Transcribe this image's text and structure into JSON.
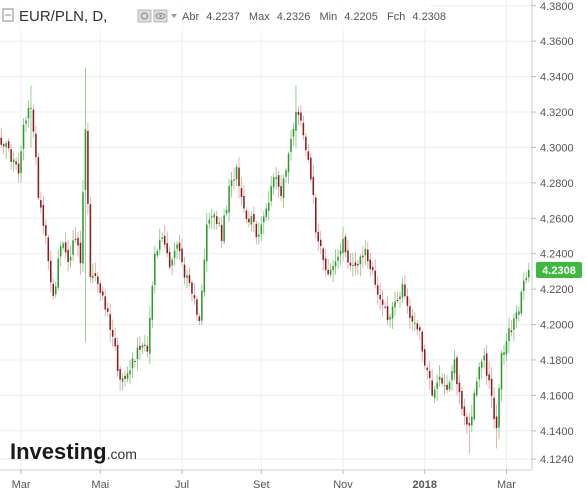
{
  "header": {
    "symbol": "EUR/PLN, D,",
    "open_label": "Abr",
    "open_value": "4.2237",
    "high_label": "Max",
    "high_value": "4.2326",
    "low_label": "Min",
    "low_value": "4.2205",
    "close_label": "Fch",
    "close_value": "4.2308"
  },
  "logo": {
    "brand": "Investing",
    "suffix": ".com"
  },
  "colors": {
    "up": "#2a9a2a",
    "down": "#8b1a1a",
    "wick_up": "#7cc47c",
    "wick_down": "#d9a0a0",
    "last_price_bg": "#3fb83f",
    "grid": "#eeeeee"
  },
  "chart_data": {
    "type": "candlestick",
    "y_ticks": [
      "4.1240",
      "4.1400",
      "4.1600",
      "4.1800",
      "4.2000",
      "4.2200",
      "4.2400",
      "4.2600",
      "4.2800",
      "4.3000",
      "4.3200",
      "4.3400",
      "4.3600",
      "4.3800"
    ],
    "ylim": [
      4.119,
      4.381
    ],
    "x_ticks": [
      {
        "label": "Mar",
        "index": 8
      },
      {
        "label": "Mai",
        "index": 40
      },
      {
        "label": "Jul",
        "index": 73
      },
      {
        "label": "Set",
        "index": 105
      },
      {
        "label": "Nov",
        "index": 138
      },
      {
        "label": "2018",
        "index": 171,
        "bold": true
      },
      {
        "label": "Mar",
        "index": 204
      }
    ],
    "bar_count": 214,
    "last_price": "4.2308",
    "last_price_value": 4.2308,
    "anchors": [
      [
        0,
        4.305
      ],
      [
        4,
        4.295
      ],
      [
        7,
        4.285
      ],
      [
        9,
        4.31
      ],
      [
        12,
        4.325
      ],
      [
        15,
        4.275
      ],
      [
        18,
        4.25
      ],
      [
        21,
        4.215
      ],
      [
        24,
        4.245
      ],
      [
        27,
        4.238
      ],
      [
        30,
        4.248
      ],
      [
        32,
        4.235
      ],
      [
        34,
        4.31
      ],
      [
        36,
        4.225
      ],
      [
        39,
        4.225
      ],
      [
        42,
        4.21
      ],
      [
        45,
        4.195
      ],
      [
        48,
        4.168
      ],
      [
        51,
        4.175
      ],
      [
        54,
        4.182
      ],
      [
        57,
        4.19
      ],
      [
        59,
        4.188
      ],
      [
        62,
        4.238
      ],
      [
        65,
        4.25
      ],
      [
        68,
        4.235
      ],
      [
        71,
        4.245
      ],
      [
        74,
        4.23
      ],
      [
        77,
        4.215
      ],
      [
        80,
        4.205
      ],
      [
        83,
        4.255
      ],
      [
        86,
        4.262
      ],
      [
        89,
        4.25
      ],
      [
        92,
        4.275
      ],
      [
        95,
        4.29
      ],
      [
        98,
        4.265
      ],
      [
        101,
        4.258
      ],
      [
        104,
        4.25
      ],
      [
        107,
        4.265
      ],
      [
        110,
        4.285
      ],
      [
        113,
        4.275
      ],
      [
        116,
        4.295
      ],
      [
        119,
        4.322
      ],
      [
        122,
        4.31
      ],
      [
        125,
        4.285
      ],
      [
        127,
        4.255
      ],
      [
        129,
        4.245
      ],
      [
        132,
        4.228
      ],
      [
        135,
        4.235
      ],
      [
        138,
        4.245
      ],
      [
        141,
        4.235
      ],
      [
        144,
        4.232
      ],
      [
        147,
        4.242
      ],
      [
        150,
        4.228
      ],
      [
        153,
        4.215
      ],
      [
        156,
        4.205
      ],
      [
        159,
        4.212
      ],
      [
        162,
        4.222
      ],
      [
        165,
        4.205
      ],
      [
        168,
        4.2
      ],
      [
        171,
        4.18
      ],
      [
        174,
        4.162
      ],
      [
        177,
        4.172
      ],
      [
        180,
        4.16
      ],
      [
        183,
        4.178
      ],
      [
        186,
        4.152
      ],
      [
        189,
        4.142
      ],
      [
        192,
        4.17
      ],
      [
        195,
        4.18
      ],
      [
        198,
        4.16
      ],
      [
        200,
        4.14
      ],
      [
        202,
        4.182
      ],
      [
        205,
        4.195
      ],
      [
        208,
        4.205
      ],
      [
        211,
        4.222
      ],
      [
        213,
        4.2308
      ]
    ],
    "spikes": [
      {
        "index": 34,
        "high": 4.345,
        "low": 4.19
      },
      {
        "index": 12,
        "high": 4.335,
        "low": 4.3
      },
      {
        "index": 119,
        "high": 4.335,
        "low": 4.3
      },
      {
        "index": 189,
        "high": 4.15,
        "low": 4.127
      },
      {
        "index": 200,
        "high": 4.155,
        "low": 4.13
      }
    ]
  }
}
